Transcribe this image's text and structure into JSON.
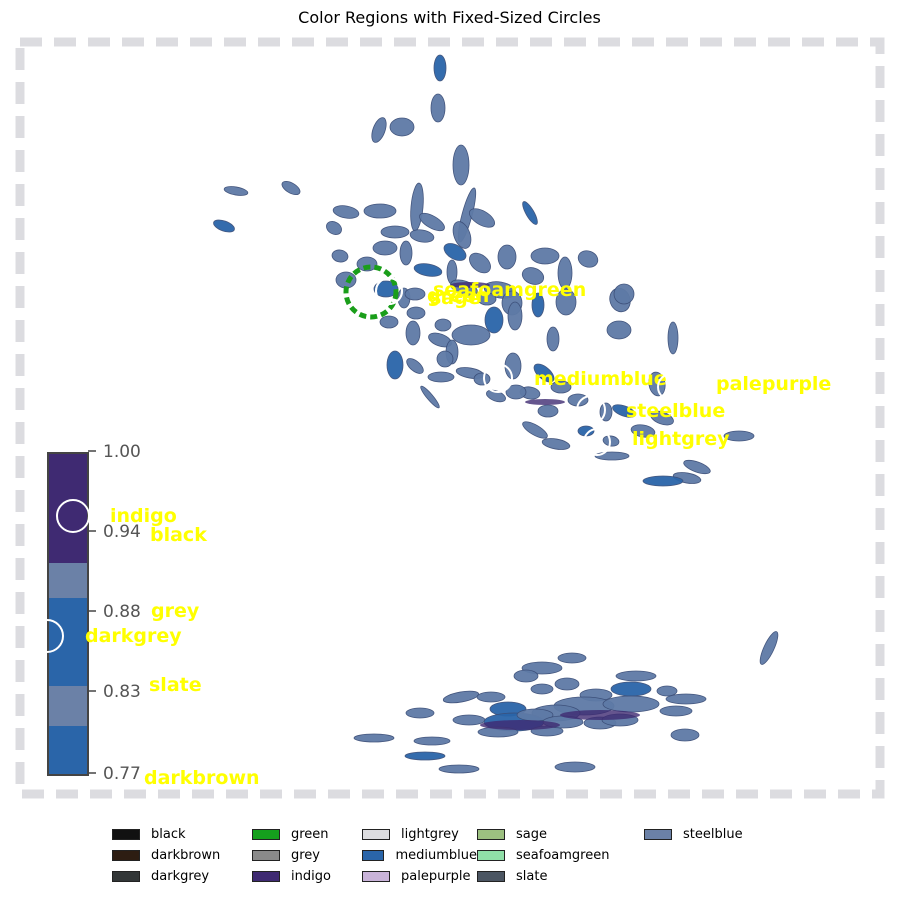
{
  "title": "Color Regions with Fixed-Sized Circles",
  "colorbar": {
    "ticks": [
      "1.00",
      "0.94",
      "0.88",
      "0.83",
      "0.77"
    ]
  },
  "chart_data": {
    "type": "scatter",
    "title": "Color Regions with Fixed-Sized Circles",
    "annotations": [
      {
        "label": "green",
        "circle_style": "dashed",
        "circle_color": "#1a9e1a"
      },
      {
        "label": "seafoamgreen",
        "circle_style": "solid",
        "circle_color": "#ffffff"
      },
      {
        "label": "sage",
        "circle_style": "solid",
        "circle_color": "#ffffff"
      },
      {
        "label": "mediumblue",
        "circle_style": "solid",
        "circle_color": "#ffffff"
      },
      {
        "label": "palepurple",
        "circle_style": "solid",
        "circle_color": "#ffffff"
      },
      {
        "label": "steelblue",
        "circle_style": "solid",
        "circle_color": "#ffffff"
      },
      {
        "label": "lightgrey",
        "circle_style": "solid",
        "circle_color": "#ffffff"
      },
      {
        "label": "indigo",
        "circle_style": "solid",
        "circle_color": "#ffffff"
      },
      {
        "label": "black",
        "circle_style": "solid",
        "circle_color": "#ffffff"
      },
      {
        "label": "grey",
        "circle_style": "solid",
        "circle_color": "#ffffff"
      },
      {
        "label": "darkgrey",
        "circle_style": "solid",
        "circle_color": "#ffffff"
      },
      {
        "label": "slate",
        "circle_style": "solid",
        "circle_color": "#ffffff"
      },
      {
        "label": "darkbrown",
        "circle_style": "solid",
        "circle_color": "#ffffff"
      }
    ],
    "label_color": "#ffff00",
    "frame": "dashed light grey border",
    "legend_position": "bottom",
    "legend": [
      {
        "name": "black",
        "color": "#111111"
      },
      {
        "name": "darkbrown",
        "color": "#2d1d12"
      },
      {
        "name": "darkgrey",
        "color": "#323637"
      },
      {
        "name": "green",
        "color": "#15a01d"
      },
      {
        "name": "grey",
        "color": "#8a8a8a"
      },
      {
        "name": "indigo",
        "color": "#3f2a72"
      },
      {
        "name": "lightgrey",
        "color": "#dddde0"
      },
      {
        "name": "mediumblue",
        "color": "#2a65a9"
      },
      {
        "name": "palepurple",
        "color": "#c9b3d9"
      },
      {
        "name": "sage",
        "color": "#9cc080"
      },
      {
        "name": "seafoamgreen",
        "color": "#90dfa8"
      },
      {
        "name": "slate",
        "color": "#4b5562"
      },
      {
        "name": "steelblue",
        "color": "#6b81a7"
      }
    ]
  }
}
